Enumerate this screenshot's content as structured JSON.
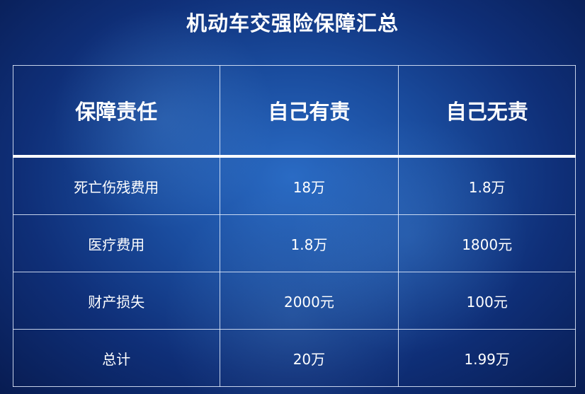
{
  "title": "机动车交强险保障汇总",
  "table": {
    "headers": [
      "保障责任",
      "自己有责",
      "自己无责"
    ],
    "rows": [
      [
        "死亡伤残费用",
        "18万",
        "1.8万"
      ],
      [
        "医疗费用",
        "1.8万",
        "1800元"
      ],
      [
        "财产损失",
        "2000元",
        "100元"
      ],
      [
        "总计",
        "20万",
        "1.99万"
      ]
    ]
  }
}
